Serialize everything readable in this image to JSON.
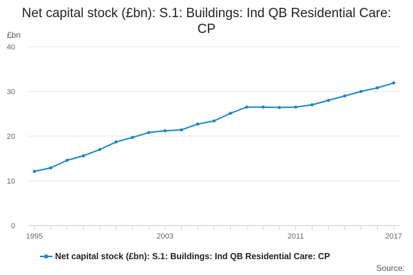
{
  "chart_data": {
    "type": "line",
    "title": "Net capital stock (£bn): S.1: Buildings: Ind QB Residential Care: CP",
    "y_unit": "£bn",
    "x": [
      1995,
      1996,
      1997,
      1998,
      1999,
      2000,
      2001,
      2002,
      2003,
      2004,
      2005,
      2006,
      2007,
      2008,
      2009,
      2010,
      2011,
      2012,
      2013,
      2014,
      2015,
      2016,
      2017
    ],
    "x_tick_labels": [
      "1995",
      "2003",
      "2011",
      "2017"
    ],
    "y_ticks": [
      0,
      10,
      20,
      30,
      40
    ],
    "ylim": [
      0,
      40
    ],
    "grid": true,
    "legend_position": "bottom",
    "series": [
      {
        "name": "Net capital stock (£bn): S.1: Buildings: Ind QB Residential Care: CP",
        "color": "#1b86c5",
        "values": [
          12.1,
          12.9,
          14.6,
          15.6,
          17.0,
          18.7,
          19.7,
          20.8,
          21.2,
          21.4,
          22.7,
          23.4,
          25.1,
          26.5,
          26.5,
          26.4,
          26.5,
          27.0,
          28.0,
          29.0,
          30.0,
          30.8,
          31.9
        ]
      }
    ],
    "source_label": "Source:"
  }
}
